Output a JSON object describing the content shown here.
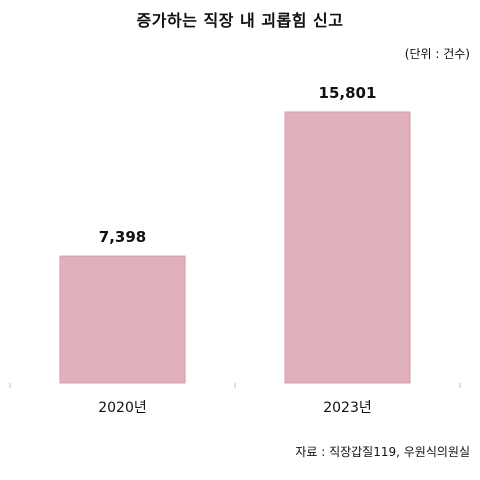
{
  "title": "증가하는 직장 내 괴롭힘 신고",
  "unit_note": "(단위 : 건수)",
  "source_note": "자료 : 직장갑질119, 우원식의원실",
  "colors": {
    "bar_fill": "#e0b1bd",
    "bar_stroke": "#d49aab",
    "axis": "#bfbfbf",
    "text": "#111111"
  },
  "chart_data": {
    "type": "bar",
    "title": "증가하는 직장 내 괴롭힘 신고",
    "xlabel": "",
    "ylabel": "",
    "categories": [
      "2020년",
      "2023년"
    ],
    "values": [
      7398,
      15801
    ],
    "value_labels": [
      "7,398",
      "15,801"
    ],
    "ylim": [
      0,
      17500
    ],
    "grid": false,
    "legend": "none"
  }
}
